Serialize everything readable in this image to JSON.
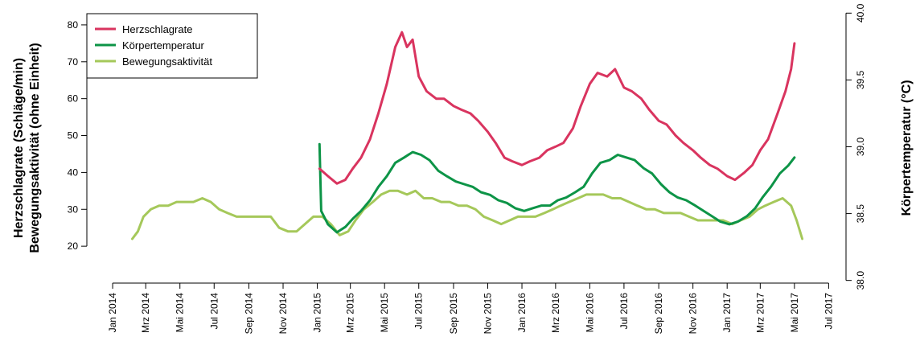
{
  "chart_data": {
    "type": "line",
    "title": "",
    "ylabel_left": [
      "Herzschlagrate (Schläge/min)",
      "Bewegungsaktivität (ohne Einheit)"
    ],
    "ylabel_right": "Körpertemperatur (°C)",
    "xlabel": "",
    "xlim": [
      "2013-11-16",
      "2017-08-01"
    ],
    "ylim_left": [
      10,
      85
    ],
    "ylim_right": [
      37.98,
      40.05
    ],
    "yticks_left": [
      20,
      30,
      40,
      50,
      60,
      70,
      80
    ],
    "yticks_right": [
      "38.0",
      "38.5",
      "39.0",
      "39.5",
      "40.0"
    ],
    "xticks": [
      {
        "date": "2014-01-01",
        "label": "Jan 2014"
      },
      {
        "date": "2014-03-01",
        "label": "Mrz 2014"
      },
      {
        "date": "2014-05-01",
        "label": "Mai 2014"
      },
      {
        "date": "2014-07-01",
        "label": "Jul 2014"
      },
      {
        "date": "2014-09-01",
        "label": "Sep 2014"
      },
      {
        "date": "2014-11-01",
        "label": "Nov 2014"
      },
      {
        "date": "2015-01-01",
        "label": "Jan 2015"
      },
      {
        "date": "2015-03-01",
        "label": "Mrz 2015"
      },
      {
        "date": "2015-05-01",
        "label": "Mai 2015"
      },
      {
        "date": "2015-07-01",
        "label": "Jul 2015"
      },
      {
        "date": "2015-09-01",
        "label": "Sep 2015"
      },
      {
        "date": "2015-11-01",
        "label": "Nov 2015"
      },
      {
        "date": "2016-01-01",
        "label": "Jan 2016"
      },
      {
        "date": "2016-03-01",
        "label": "Mrz 2016"
      },
      {
        "date": "2016-05-01",
        "label": "Mai 2016"
      },
      {
        "date": "2016-07-01",
        "label": "Jul 2016"
      },
      {
        "date": "2016-09-01",
        "label": "Sep 2016"
      },
      {
        "date": "2016-11-01",
        "label": "Nov 2016"
      },
      {
        "date": "2017-01-01",
        "label": "Jan 2017"
      },
      {
        "date": "2017-03-01",
        "label": "Mrz 2017"
      },
      {
        "date": "2017-05-01",
        "label": "Mai 2017"
      },
      {
        "date": "2017-07-01",
        "label": "Jul 2017"
      }
    ],
    "legend_position": "top-left",
    "grid": false,
    "series": [
      {
        "name": "Herzschlagrate",
        "axis": "left",
        "color": "#d9345f",
        "points": [
          [
            "2015-01-05",
            41
          ],
          [
            "2015-01-20",
            39
          ],
          [
            "2015-02-05",
            37
          ],
          [
            "2015-02-20",
            38
          ],
          [
            "2015-03-05",
            41
          ],
          [
            "2015-03-20",
            44
          ],
          [
            "2015-04-05",
            49
          ],
          [
            "2015-04-20",
            56
          ],
          [
            "2015-05-05",
            64
          ],
          [
            "2015-05-20",
            74
          ],
          [
            "2015-06-01",
            78
          ],
          [
            "2015-06-10",
            74
          ],
          [
            "2015-06-20",
            76
          ],
          [
            "2015-07-01",
            66
          ],
          [
            "2015-07-15",
            62
          ],
          [
            "2015-08-01",
            60
          ],
          [
            "2015-08-15",
            60
          ],
          [
            "2015-09-01",
            58
          ],
          [
            "2015-09-15",
            57
          ],
          [
            "2015-10-01",
            56
          ],
          [
            "2015-10-15",
            54
          ],
          [
            "2015-11-01",
            51
          ],
          [
            "2015-11-15",
            48
          ],
          [
            "2015-12-01",
            44
          ],
          [
            "2015-12-15",
            43
          ],
          [
            "2016-01-01",
            42
          ],
          [
            "2016-01-15",
            43
          ],
          [
            "2016-02-01",
            44
          ],
          [
            "2016-02-15",
            46
          ],
          [
            "2016-03-01",
            47
          ],
          [
            "2016-03-15",
            48
          ],
          [
            "2016-04-01",
            52
          ],
          [
            "2016-04-15",
            58
          ],
          [
            "2016-05-01",
            64
          ],
          [
            "2016-05-15",
            67
          ],
          [
            "2016-06-01",
            66
          ],
          [
            "2016-06-15",
            68
          ],
          [
            "2016-07-01",
            63
          ],
          [
            "2016-07-15",
            62
          ],
          [
            "2016-08-01",
            60
          ],
          [
            "2016-08-15",
            57
          ],
          [
            "2016-09-01",
            54
          ],
          [
            "2016-09-15",
            53
          ],
          [
            "2016-10-01",
            50
          ],
          [
            "2016-10-15",
            48
          ],
          [
            "2016-11-01",
            46
          ],
          [
            "2016-11-15",
            44
          ],
          [
            "2016-12-01",
            42
          ],
          [
            "2016-12-15",
            41
          ],
          [
            "2017-01-01",
            39
          ],
          [
            "2017-01-15",
            38
          ],
          [
            "2017-02-01",
            40
          ],
          [
            "2017-02-15",
            42
          ],
          [
            "2017-03-01",
            46
          ],
          [
            "2017-03-15",
            49
          ],
          [
            "2017-04-01",
            56
          ],
          [
            "2017-04-15",
            62
          ],
          [
            "2017-04-25",
            68
          ],
          [
            "2017-05-01",
            75
          ]
        ]
      },
      {
        "name": "Körpertemperatur",
        "axis": "right",
        "color": "#0d9447",
        "points": [
          [
            "2015-01-05",
            39.02
          ],
          [
            "2015-01-08",
            38.52
          ],
          [
            "2015-01-20",
            38.42
          ],
          [
            "2015-02-05",
            38.36
          ],
          [
            "2015-02-20",
            38.4
          ],
          [
            "2015-03-05",
            38.46
          ],
          [
            "2015-03-20",
            38.52
          ],
          [
            "2015-04-05",
            38.6
          ],
          [
            "2015-04-20",
            38.7
          ],
          [
            "2015-05-05",
            38.78
          ],
          [
            "2015-05-20",
            38.88
          ],
          [
            "2015-06-05",
            38.92
          ],
          [
            "2015-06-20",
            38.96
          ],
          [
            "2015-07-05",
            38.94
          ],
          [
            "2015-07-20",
            38.9
          ],
          [
            "2015-08-05",
            38.82
          ],
          [
            "2015-08-20",
            38.78
          ],
          [
            "2015-09-05",
            38.74
          ],
          [
            "2015-09-20",
            38.72
          ],
          [
            "2015-10-05",
            38.7
          ],
          [
            "2015-10-20",
            38.66
          ],
          [
            "2015-11-05",
            38.64
          ],
          [
            "2015-11-20",
            38.6
          ],
          [
            "2015-12-05",
            38.58
          ],
          [
            "2015-12-20",
            38.54
          ],
          [
            "2016-01-05",
            38.52
          ],
          [
            "2016-01-20",
            38.54
          ],
          [
            "2016-02-05",
            38.56
          ],
          [
            "2016-02-20",
            38.56
          ],
          [
            "2016-03-05",
            38.6
          ],
          [
            "2016-03-20",
            38.62
          ],
          [
            "2016-04-05",
            38.66
          ],
          [
            "2016-04-20",
            38.7
          ],
          [
            "2016-05-05",
            38.8
          ],
          [
            "2016-05-20",
            38.88
          ],
          [
            "2016-06-05",
            38.9
          ],
          [
            "2016-06-20",
            38.94
          ],
          [
            "2016-07-05",
            38.92
          ],
          [
            "2016-07-20",
            38.9
          ],
          [
            "2016-08-05",
            38.84
          ],
          [
            "2016-08-20",
            38.8
          ],
          [
            "2016-09-05",
            38.72
          ],
          [
            "2016-09-20",
            38.66
          ],
          [
            "2016-10-05",
            38.62
          ],
          [
            "2016-10-20",
            38.6
          ],
          [
            "2016-11-05",
            38.56
          ],
          [
            "2016-11-20",
            38.52
          ],
          [
            "2016-12-05",
            38.48
          ],
          [
            "2016-12-20",
            38.44
          ],
          [
            "2017-01-05",
            38.42
          ],
          [
            "2017-01-20",
            38.44
          ],
          [
            "2017-02-05",
            38.48
          ],
          [
            "2017-02-20",
            38.54
          ],
          [
            "2017-03-05",
            38.62
          ],
          [
            "2017-03-20",
            38.7
          ],
          [
            "2017-04-05",
            38.8
          ],
          [
            "2017-04-20",
            38.86
          ],
          [
            "2017-05-01",
            38.92
          ]
        ]
      },
      {
        "name": "Bewegungsaktivität",
        "axis": "left",
        "color": "#a5c85a",
        "points": [
          [
            "2014-02-05",
            22
          ],
          [
            "2014-02-15",
            24
          ],
          [
            "2014-02-25",
            28
          ],
          [
            "2014-03-10",
            30
          ],
          [
            "2014-03-25",
            31
          ],
          [
            "2014-04-10",
            31
          ],
          [
            "2014-04-25",
            32
          ],
          [
            "2014-05-10",
            32
          ],
          [
            "2014-05-25",
            32
          ],
          [
            "2014-06-10",
            33
          ],
          [
            "2014-06-25",
            32
          ],
          [
            "2014-07-10",
            30
          ],
          [
            "2014-07-25",
            29
          ],
          [
            "2014-08-10",
            28
          ],
          [
            "2014-08-25",
            28
          ],
          [
            "2014-09-10",
            28
          ],
          [
            "2014-09-25",
            28
          ],
          [
            "2014-10-10",
            28
          ],
          [
            "2014-10-25",
            25
          ],
          [
            "2014-11-10",
            24
          ],
          [
            "2014-11-25",
            24
          ],
          [
            "2014-12-10",
            26
          ],
          [
            "2014-12-25",
            28
          ],
          [
            "2015-01-10",
            28
          ],
          [
            "2015-01-25",
            26
          ],
          [
            "2015-02-10",
            23
          ],
          [
            "2015-02-25",
            24
          ],
          [
            "2015-03-10",
            27
          ],
          [
            "2015-03-25",
            30
          ],
          [
            "2015-04-10",
            32
          ],
          [
            "2015-04-25",
            34
          ],
          [
            "2015-05-10",
            35
          ],
          [
            "2015-05-25",
            35
          ],
          [
            "2015-06-10",
            34
          ],
          [
            "2015-06-25",
            35
          ],
          [
            "2015-07-10",
            33
          ],
          [
            "2015-07-25",
            33
          ],
          [
            "2015-08-10",
            32
          ],
          [
            "2015-08-25",
            32
          ],
          [
            "2015-09-10",
            31
          ],
          [
            "2015-09-25",
            31
          ],
          [
            "2015-10-10",
            30
          ],
          [
            "2015-10-25",
            28
          ],
          [
            "2015-11-10",
            27
          ],
          [
            "2015-11-25",
            26
          ],
          [
            "2015-12-10",
            27
          ],
          [
            "2015-12-25",
            28
          ],
          [
            "2016-01-10",
            28
          ],
          [
            "2016-01-25",
            28
          ],
          [
            "2016-02-10",
            29
          ],
          [
            "2016-02-25",
            30
          ],
          [
            "2016-03-10",
            31
          ],
          [
            "2016-03-25",
            32
          ],
          [
            "2016-04-10",
            33
          ],
          [
            "2016-04-25",
            34
          ],
          [
            "2016-05-10",
            34
          ],
          [
            "2016-05-25",
            34
          ],
          [
            "2016-06-10",
            33
          ],
          [
            "2016-06-25",
            33
          ],
          [
            "2016-07-10",
            32
          ],
          [
            "2016-07-25",
            31
          ],
          [
            "2016-08-10",
            30
          ],
          [
            "2016-08-25",
            30
          ],
          [
            "2016-09-10",
            29
          ],
          [
            "2016-09-25",
            29
          ],
          [
            "2016-10-10",
            29
          ],
          [
            "2016-10-25",
            28
          ],
          [
            "2016-11-10",
            27
          ],
          [
            "2016-11-25",
            27
          ],
          [
            "2016-12-10",
            27
          ],
          [
            "2016-12-25",
            27
          ],
          [
            "2017-01-10",
            26
          ],
          [
            "2017-01-25",
            27
          ],
          [
            "2017-02-10",
            28
          ],
          [
            "2017-02-25",
            30
          ],
          [
            "2017-03-10",
            31
          ],
          [
            "2017-03-25",
            32
          ],
          [
            "2017-04-10",
            33
          ],
          [
            "2017-04-25",
            31
          ],
          [
            "2017-05-05",
            27
          ],
          [
            "2017-05-15",
            22
          ]
        ]
      }
    ]
  }
}
